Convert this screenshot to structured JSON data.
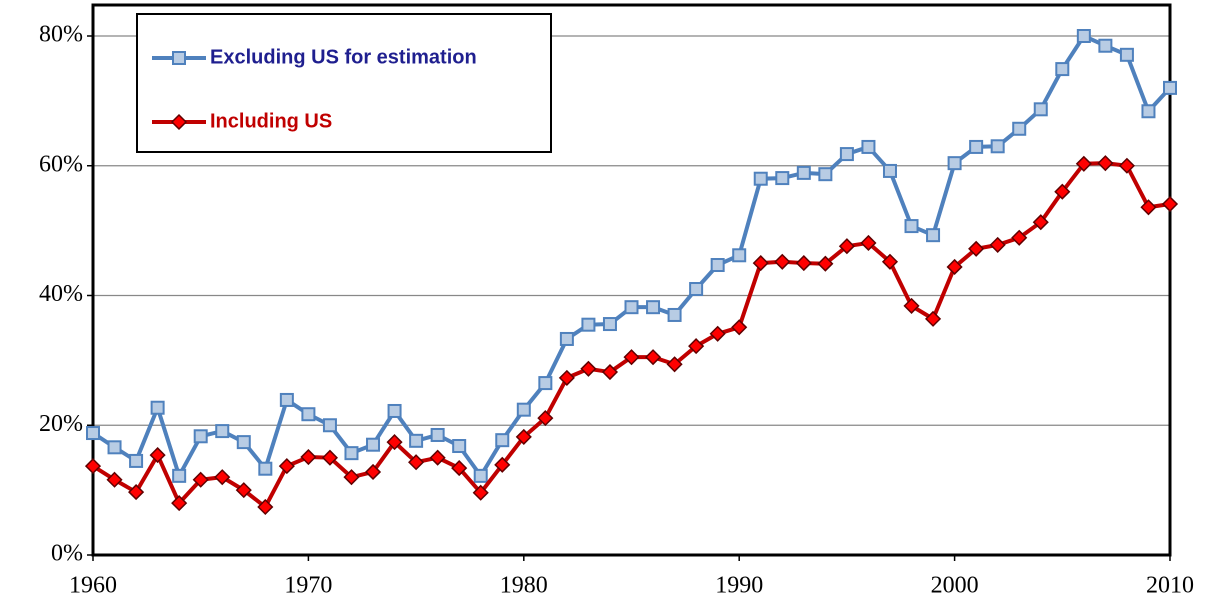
{
  "chart_data": {
    "type": "line",
    "x": [
      1960,
      1961,
      1962,
      1963,
      1964,
      1965,
      1966,
      1967,
      1968,
      1969,
      1970,
      1971,
      1972,
      1973,
      1974,
      1975,
      1976,
      1977,
      1978,
      1979,
      1980,
      1981,
      1982,
      1983,
      1984,
      1985,
      1986,
      1987,
      1988,
      1989,
      1990,
      1991,
      1992,
      1993,
      1994,
      1995,
      1996,
      1997,
      1998,
      1999,
      2000,
      2001,
      2002,
      2003,
      2004,
      2005,
      2006,
      2007,
      2008,
      2009,
      2010
    ],
    "series": [
      {
        "name": "Excluding US for estimation",
        "color": "#4f81bd",
        "marker": "square",
        "marker_fill": "#b8cce4",
        "label_color": "#1f1f8f",
        "values": [
          18.8,
          16.6,
          14.5,
          22.7,
          12.2,
          18.3,
          19.1,
          17.4,
          13.3,
          23.9,
          21.7,
          20.0,
          15.7,
          17.0,
          22.2,
          17.6,
          18.5,
          16.8,
          12.2,
          17.7,
          22.4,
          26.5,
          33.3,
          35.5,
          35.6,
          38.2,
          38.2,
          37.0,
          41.0,
          44.7,
          46.2,
          58.0,
          58.1,
          58.9,
          58.7,
          61.8,
          62.9,
          59.2,
          50.7,
          49.3,
          60.4,
          62.9,
          63.0,
          65.7,
          68.7,
          74.9,
          80.0,
          78.5,
          77.1,
          68.4,
          72.0
        ]
      },
      {
        "name": "Including US",
        "color": "#c00000",
        "marker": "diamond",
        "marker_fill": "#ff0000",
        "label_color": "#c00000",
        "values": [
          13.7,
          11.6,
          9.7,
          15.4,
          8.0,
          11.6,
          12.0,
          10.0,
          7.4,
          13.7,
          15.1,
          15.0,
          12.0,
          12.8,
          17.4,
          14.3,
          15.0,
          13.4,
          9.6,
          13.9,
          18.2,
          21.1,
          27.3,
          28.7,
          28.2,
          30.5,
          30.5,
          29.4,
          32.2,
          34.1,
          35.1,
          45.0,
          45.2,
          45.0,
          44.9,
          47.6,
          48.1,
          45.2,
          38.4,
          36.4,
          44.4,
          47.2,
          47.8,
          48.9,
          51.3,
          56.0,
          60.3,
          60.4,
          60.0,
          53.6,
          54.1
        ]
      }
    ],
    "xlim": [
      1960,
      2010
    ],
    "xticks": [
      1960,
      1970,
      1980,
      1990,
      2000,
      2010
    ],
    "ylim": [
      0,
      80
    ],
    "yticks": [
      {
        "value": 0,
        "label": "0%"
      },
      {
        "value": 20,
        "label": "20%"
      },
      {
        "value": 40,
        "label": "40%"
      },
      {
        "value": 60,
        "label": "60%"
      },
      {
        "value": 80,
        "label": "80%"
      }
    ],
    "grid": true,
    "legend": "upper left"
  }
}
